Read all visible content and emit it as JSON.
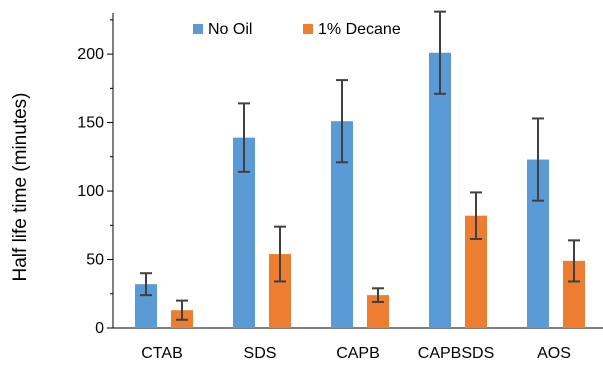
{
  "chart_data": {
    "type": "bar",
    "title": "",
    "xlabel": "",
    "ylabel": "Half life time (minutes)",
    "ylim": [
      0,
      230
    ],
    "yticks": [
      0,
      50,
      100,
      150,
      200
    ],
    "categories": [
      "CTAB",
      "SDS",
      "CAPB",
      "CAPBSDS",
      "AOS"
    ],
    "series": [
      {
        "name": "No Oil",
        "color": "#5B9BD5",
        "values": [
          32,
          139,
          151,
          201,
          123
        ],
        "errors": [
          8,
          25,
          30,
          30,
          30
        ]
      },
      {
        "name": "1% Decane",
        "color": "#ED7D31",
        "values": [
          13,
          54,
          24,
          82,
          49
        ],
        "errors": [
          7,
          20,
          5,
          17,
          15
        ]
      }
    ],
    "legend": "top",
    "grid": false,
    "error_bar_color": "#404040"
  }
}
